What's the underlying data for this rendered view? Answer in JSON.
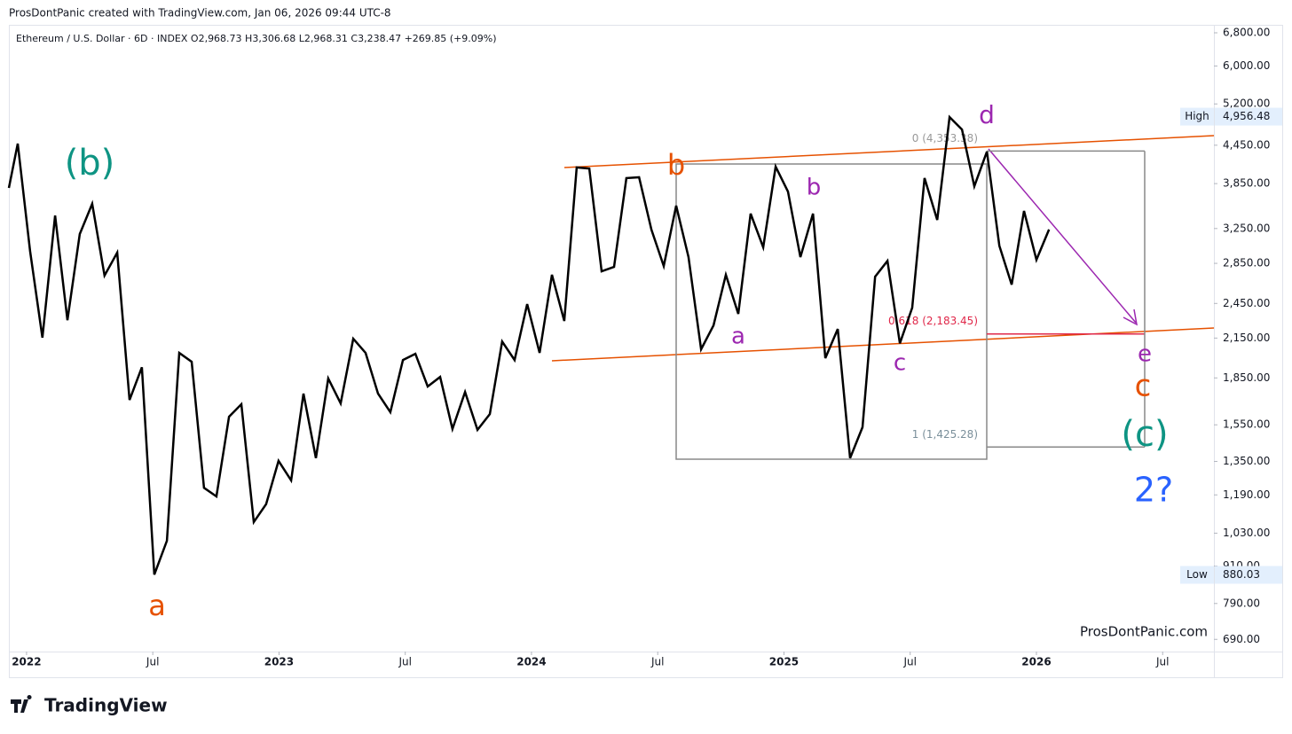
{
  "header": {
    "credit": "ProsDontPanic created with TradingView.com, Jan 06, 2026 09:44 UTC-8"
  },
  "chart_data": {
    "type": "line",
    "title": "Ethereum / U.S. Dollar · 6D · INDEX  O2,968.73  H3,306.68  L2,968.31  C3,238.47  +269.85 (+9.09%)",
    "log_scale": true,
    "xlim": [
      2021.93,
      2026.703
    ],
    "ylim": [
      659,
      7008
    ],
    "xticks": [
      2022,
      {
        "value": 2022.5,
        "label": "Jul"
      },
      2023,
      {
        "value": 2023.5,
        "label": "Jul"
      },
      2024,
      {
        "value": 2024.5,
        "label": "Jul"
      },
      2025,
      {
        "value": 2025.5,
        "label": "Jul"
      },
      2026,
      {
        "value": 2026.5,
        "label": "Jul"
      }
    ],
    "yticks": [
      {
        "value": 6800,
        "label": "6,800.00"
      },
      {
        "value": 6000,
        "label": "6,000.00"
      },
      {
        "value": 5200,
        "label": "5,200.00"
      },
      {
        "value": 4450,
        "label": "4,450.00"
      },
      {
        "value": 3850,
        "label": "3,850.00"
      },
      {
        "value": 3250,
        "label": "3,250.00"
      },
      {
        "value": 2850,
        "label": "2,850.00"
      },
      {
        "value": 2450,
        "label": "2,450.00"
      },
      {
        "value": 2150,
        "label": "2,150.00"
      },
      {
        "value": 1850,
        "label": "1,850.00"
      },
      {
        "value": 1550,
        "label": "1,550.00"
      },
      {
        "value": 1350,
        "label": "1,350.00"
      },
      {
        "value": 1190,
        "label": "1,190.00"
      },
      {
        "value": 1030,
        "label": "1,030.00"
      },
      {
        "value": 910,
        "label": "910.00"
      },
      {
        "value": 790,
        "label": "790.00"
      },
      {
        "value": 690,
        "label": "690.00"
      }
    ],
    "series": [
      {
        "name": "ETHUSD",
        "color": "#000000",
        "x": [
          2021.93,
          2021.965,
          2022.014,
          2022.063,
          2022.113,
          2022.162,
          2022.211,
          2022.26,
          2022.309,
          2022.359,
          2022.408,
          2022.457,
          2022.506,
          2022.556,
          2022.605,
          2022.654,
          2022.703,
          2022.752,
          2022.802,
          2022.851,
          2022.9,
          2022.949,
          2022.998,
          2023.048,
          2023.097,
          2023.146,
          2023.195,
          2023.244,
          2023.294,
          2023.343,
          2023.392,
          2023.441,
          2023.491,
          2023.54,
          2023.589,
          2023.638,
          2023.687,
          2023.737,
          2023.786,
          2023.835,
          2023.884,
          2023.933,
          2023.983,
          2024.032,
          2024.081,
          2024.13,
          2024.179,
          2024.229,
          2024.278,
          2024.327,
          2024.376,
          2024.426,
          2024.475,
          2024.524,
          2024.573,
          2024.622,
          2024.672,
          2024.721,
          2024.77,
          2024.819,
          2024.868,
          2024.918,
          2024.967,
          2025.016,
          2025.065,
          2025.115,
          2025.164,
          2025.213,
          2025.262,
          2025.311,
          2025.361,
          2025.41,
          2025.459,
          2025.508,
          2025.557,
          2025.607,
          2025.656,
          2025.705,
          2025.754,
          2025.804,
          2025.853,
          2025.902,
          2025.951,
          2026.0,
          2026.05
        ],
        "values": [
          3788,
          4477,
          2985,
          2153,
          3414,
          2300,
          3183,
          3568,
          2722,
          2967,
          1702,
          1926,
          881,
          1001,
          2033,
          1966,
          1222,
          1183,
          1598,
          1675,
          1074,
          1149,
          1353,
          1257,
          1744,
          1367,
          1846,
          1681,
          2145,
          2033,
          1744,
          1626,
          1979,
          2026,
          1791,
          1857,
          1526,
          1754,
          1521,
          1614,
          2122,
          1979,
          2444,
          2033,
          2729,
          2293,
          4092,
          4075,
          2765,
          2812,
          3931,
          3943,
          3237,
          2821,
          3543,
          2918,
          2061,
          2255,
          2729,
          2355,
          3438,
          3028,
          4104,
          3735,
          2918,
          3438,
          1993,
          2225,
          1367,
          1536,
          2710,
          2877,
          2108,
          2411,
          3931,
          3357,
          4948,
          4722,
          3812,
          4344,
          3046,
          2630,
          3474,
          2889,
          3238
        ]
      }
    ],
    "high": {
      "label": "High",
      "value": 4956.48,
      "value_label": "4,956.48"
    },
    "low": {
      "label": "Low",
      "value": 880.03,
      "value_label": "880.03"
    },
    "fib_levels": [
      {
        "value": 4353.38,
        "label": "0 (4,353.38)",
        "color": "#999999"
      },
      {
        "value": 2183.45,
        "label": "0.618 (2,183.45)",
        "color": "#e0284a"
      },
      {
        "value": 1425.28,
        "label": "1 (1,425.28)",
        "color": "#7a8f9a"
      }
    ],
    "annotations": [
      {
        "text": "(b)",
        "color": "#0e9483"
      },
      {
        "text": "a",
        "color": "#e65100"
      },
      {
        "text": "b",
        "color": "#e65100"
      },
      {
        "text": "a",
        "color": "#9c27b0"
      },
      {
        "text": "b",
        "color": "#9c27b0"
      },
      {
        "text": "c",
        "color": "#9c27b0"
      },
      {
        "text": "d",
        "color": "#9c27b0"
      },
      {
        "text": "e",
        "color": "#9c27b0"
      },
      {
        "text": "c",
        "color": "#e65100"
      },
      {
        "text": "(c)",
        "color": "#0e9483"
      },
      {
        "text": "2?",
        "color": "#2962ff"
      }
    ],
    "watermark": "ProsDontPanic.com"
  },
  "footer": {
    "brand": "TradingView"
  }
}
